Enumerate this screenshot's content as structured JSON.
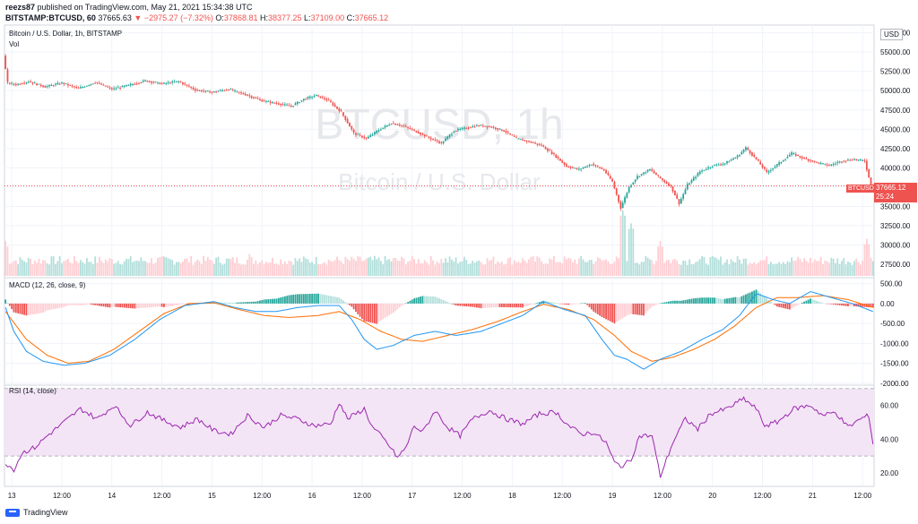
{
  "header": {
    "user": "reezs87",
    "published_text": "published on TradingView.com, May 21, 2021 15:34:38 UTC",
    "symbol_line": "BITSTAMP:BTCUSD, 60",
    "last": "37665.63",
    "change": "▼ −2975.27 (−7.32%)",
    "o_label": "O:",
    "o_value": "37868.81",
    "h_label": "H:",
    "h_value": "38377.25",
    "l_label": "L:",
    "l_value": "37109.00",
    "c_label": "C:",
    "c_value": "37665.12"
  },
  "price_pane": {
    "title": "Bitcoin / U.S. Dollar, 1h, BITSTAMP",
    "vol_label": "Vol",
    "watermark_symbol": "BTCUSD, 1h",
    "watermark_name": "Bitcoin / U.S. Dollar",
    "currency": "USD",
    "last_price_tag": "37665.12",
    "countdown": "25:24",
    "symbol_tag": "BTCUSD"
  },
  "macd_pane": {
    "title": "MACD (12, 26, close, 9)"
  },
  "rsi_pane": {
    "title": "RSI (14, close)"
  },
  "footer": {
    "brand": "TradingView"
  },
  "colors": {
    "up": "#26a69a",
    "down": "#ef5350",
    "up_light": "#b2dfdb",
    "down_light": "#ffcdd2",
    "macd_line": "#2196f3",
    "signal_line": "#ff6d00",
    "rsi_line": "#9c27b0",
    "rsi_band": "#f3e5f5"
  },
  "chart_data": [
    {
      "type": "candlestick",
      "title": "Bitcoin / U.S. Dollar, 1h, BITSTAMP",
      "x_ticks": [
        "13",
        "12:00",
        "14",
        "12:00",
        "15",
        "12:00",
        "16",
        "12:00",
        "17",
        "12:00",
        "18",
        "12:00",
        "19",
        "12:00",
        "20",
        "12:00",
        "21",
        "12:00"
      ],
      "y_ticks": [
        27500,
        30000,
        32500,
        35000,
        37500,
        40000,
        42500,
        45000,
        47500,
        50000,
        52500,
        55000,
        57500
      ],
      "ylim": [
        26000,
        58500
      ],
      "close_path_points": [
        [
          0,
          54500
        ],
        [
          2,
          51000
        ],
        [
          6,
          50800
        ],
        [
          12,
          51200
        ],
        [
          20,
          50500
        ],
        [
          28,
          51000
        ],
        [
          36,
          50300
        ],
        [
          44,
          51100
        ],
        [
          52,
          50200
        ],
        [
          60,
          50700
        ],
        [
          68,
          51300
        ],
        [
          76,
          50900
        ],
        [
          84,
          51200
        ],
        [
          92,
          50100
        ],
        [
          100,
          49800
        ],
        [
          108,
          50200
        ],
        [
          116,
          49500
        ],
        [
          124,
          48700
        ],
        [
          132,
          48300
        ],
        [
          138,
          48000
        ],
        [
          144,
          48900
        ],
        [
          150,
          49400
        ],
        [
          156,
          48700
        ],
        [
          162,
          47200
        ],
        [
          168,
          44500
        ],
        [
          174,
          43800
        ],
        [
          180,
          44900
        ],
        [
          186,
          45800
        ],
        [
          192,
          45400
        ],
        [
          198,
          44700
        ],
        [
          204,
          43900
        ],
        [
          210,
          43200
        ],
        [
          216,
          44800
        ],
        [
          222,
          45200
        ],
        [
          228,
          45500
        ],
        [
          234,
          45300
        ],
        [
          240,
          44800
        ],
        [
          246,
          43800
        ],
        [
          252,
          43400
        ],
        [
          258,
          42900
        ],
        [
          264,
          41700
        ],
        [
          270,
          40200
        ],
        [
          276,
          39800
        ],
        [
          282,
          40500
        ],
        [
          288,
          39700
        ],
        [
          292,
          38200
        ],
        [
          296,
          34800
        ],
        [
          300,
          37500
        ],
        [
          304,
          38900
        ],
        [
          310,
          39800
        ],
        [
          316,
          38400
        ],
        [
          320,
          37600
        ],
        [
          324,
          35400
        ],
        [
          328,
          37800
        ],
        [
          334,
          39500
        ],
        [
          340,
          40300
        ],
        [
          346,
          40600
        ],
        [
          352,
          41500
        ],
        [
          356,
          42600
        ],
        [
          362,
          40800
        ],
        [
          366,
          39400
        ],
        [
          372,
          40600
        ],
        [
          378,
          41900
        ],
        [
          384,
          41200
        ],
        [
          390,
          40700
        ],
        [
          396,
          40300
        ],
        [
          402,
          40900
        ],
        [
          408,
          41100
        ],
        [
          413,
          40900
        ],
        [
          416,
          37665
        ]
      ],
      "volume_spikes": [
        [
          0,
          30500
        ],
        [
          117,
          28800
        ],
        [
          296,
          34500
        ],
        [
          300,
          32800
        ],
        [
          314,
          30500
        ],
        [
          413,
          30800
        ]
      ],
      "last_price": 37665.12
    },
    {
      "type": "bar+line",
      "title": "MACD (12, 26, close, 9)",
      "y_ticks": [
        500,
        0,
        -500,
        -1000,
        -1500,
        -2000
      ],
      "ylim": [
        -2050,
        650
      ],
      "series": [
        {
          "points": [
            [
              0,
              -100
            ],
            [
              4,
              -700
            ],
            [
              10,
              -1200
            ],
            [
              18,
              -1450
            ],
            [
              28,
              -1550
            ],
            [
              38,
              -1500
            ],
            [
              50,
              -1300
            ],
            [
              62,
              -900
            ],
            [
              74,
              -400
            ],
            [
              86,
              -50
            ],
            [
              100,
              50
            ],
            [
              110,
              -100
            ],
            [
              120,
              -200
            ],
            [
              130,
              -200
            ],
            [
              140,
              -100
            ],
            [
              150,
              -50
            ],
            [
              160,
              -50
            ],
            [
              166,
              -400
            ],
            [
              172,
              -900
            ],
            [
              178,
              -1150
            ],
            [
              186,
              -1050
            ],
            [
              196,
              -800
            ],
            [
              206,
              -700
            ],
            [
              216,
              -800
            ],
            [
              228,
              -700
            ],
            [
              238,
              -500
            ],
            [
              248,
              -300
            ],
            [
              258,
              50
            ],
            [
              268,
              -150
            ],
            [
              278,
              -300
            ],
            [
              286,
              -900
            ],
            [
              292,
              -1300
            ],
            [
              298,
              -1400
            ],
            [
              306,
              -1650
            ],
            [
              314,
              -1400
            ],
            [
              324,
              -1200
            ],
            [
              334,
              -900
            ],
            [
              344,
              -650
            ],
            [
              352,
              -300
            ],
            [
              360,
              250
            ],
            [
              368,
              100
            ],
            [
              376,
              0
            ],
            [
              386,
              300
            ],
            [
              396,
              150
            ],
            [
              406,
              0
            ],
            [
              416,
              -200
            ]
          ]
        },
        {
          "points": [
            [
              0,
              -200
            ],
            [
              10,
              -900
            ],
            [
              20,
              -1300
            ],
            [
              30,
              -1500
            ],
            [
              40,
              -1450
            ],
            [
              52,
              -1150
            ],
            [
              64,
              -700
            ],
            [
              76,
              -250
            ],
            [
              88,
              0
            ],
            [
              100,
              20
            ],
            [
              112,
              -150
            ],
            [
              124,
              -300
            ],
            [
              136,
              -350
            ],
            [
              150,
              -300
            ],
            [
              160,
              -200
            ],
            [
              170,
              -400
            ],
            [
              180,
              -700
            ],
            [
              190,
              -900
            ],
            [
              200,
              -950
            ],
            [
              212,
              -800
            ],
            [
              224,
              -650
            ],
            [
              236,
              -450
            ],
            [
              248,
              -200
            ],
            [
              258,
              -20
            ],
            [
              270,
              -150
            ],
            [
              282,
              -400
            ],
            [
              292,
              -800
            ],
            [
              300,
              -1200
            ],
            [
              310,
              -1450
            ],
            [
              320,
              -1350
            ],
            [
              330,
              -1150
            ],
            [
              340,
              -900
            ],
            [
              350,
              -550
            ],
            [
              360,
              -100
            ],
            [
              370,
              150
            ],
            [
              380,
              150
            ],
            [
              392,
              200
            ],
            [
              404,
              100
            ],
            [
              416,
              -100
            ]
          ]
        },
        {
          "histogram_values": [
            -700,
            -400,
            350,
            400,
            200,
            -100,
            -500,
            400,
            350,
            -600,
            -800,
            550,
            400,
            -300
          ]
        }
      ]
    },
    {
      "type": "line",
      "title": "RSI (14, close)",
      "y_ticks": [
        60,
        40,
        20
      ],
      "ylim": [
        12,
        72
      ],
      "band": [
        30,
        70
      ],
      "points": [
        [
          0,
          26
        ],
        [
          4,
          22
        ],
        [
          8,
          32
        ],
        [
          14,
          35
        ],
        [
          20,
          42
        ],
        [
          28,
          50
        ],
        [
          36,
          58
        ],
        [
          44,
          52
        ],
        [
          52,
          60
        ],
        [
          60,
          48
        ],
        [
          68,
          56
        ],
        [
          76,
          51
        ],
        [
          84,
          47
        ],
        [
          92,
          52
        ],
        [
          100,
          45
        ],
        [
          108,
          43
        ],
        [
          116,
          54
        ],
        [
          124,
          47
        ],
        [
          132,
          54
        ],
        [
          140,
          52
        ],
        [
          148,
          48
        ],
        [
          156,
          49
        ],
        [
          160,
          62
        ],
        [
          164,
          52
        ],
        [
          168,
          55
        ],
        [
          172,
          58
        ],
        [
          176,
          47
        ],
        [
          180,
          42
        ],
        [
          184,
          36
        ],
        [
          188,
          29
        ],
        [
          192,
          35
        ],
        [
          196,
          48
        ],
        [
          200,
          44
        ],
        [
          206,
          57
        ],
        [
          212,
          47
        ],
        [
          218,
          42
        ],
        [
          224,
          52
        ],
        [
          232,
          57
        ],
        [
          240,
          52
        ],
        [
          248,
          49
        ],
        [
          256,
          55
        ],
        [
          264,
          56
        ],
        [
          270,
          48
        ],
        [
          276,
          43
        ],
        [
          282,
          44
        ],
        [
          288,
          38
        ],
        [
          292,
          26
        ],
        [
          296,
          24
        ],
        [
          300,
          28
        ],
        [
          304,
          42
        ],
        [
          310,
          42
        ],
        [
          314,
          18
        ],
        [
          320,
          38
        ],
        [
          326,
          52
        ],
        [
          332,
          46
        ],
        [
          338,
          55
        ],
        [
          346,
          58
        ],
        [
          354,
          64
        ],
        [
          360,
          58
        ],
        [
          364,
          48
        ],
        [
          370,
          50
        ],
        [
          378,
          58
        ],
        [
          386,
          60
        ],
        [
          392,
          54
        ],
        [
          398,
          56
        ],
        [
          404,
          47
        ],
        [
          410,
          52
        ],
        [
          414,
          54
        ],
        [
          416,
          37
        ]
      ]
    }
  ]
}
